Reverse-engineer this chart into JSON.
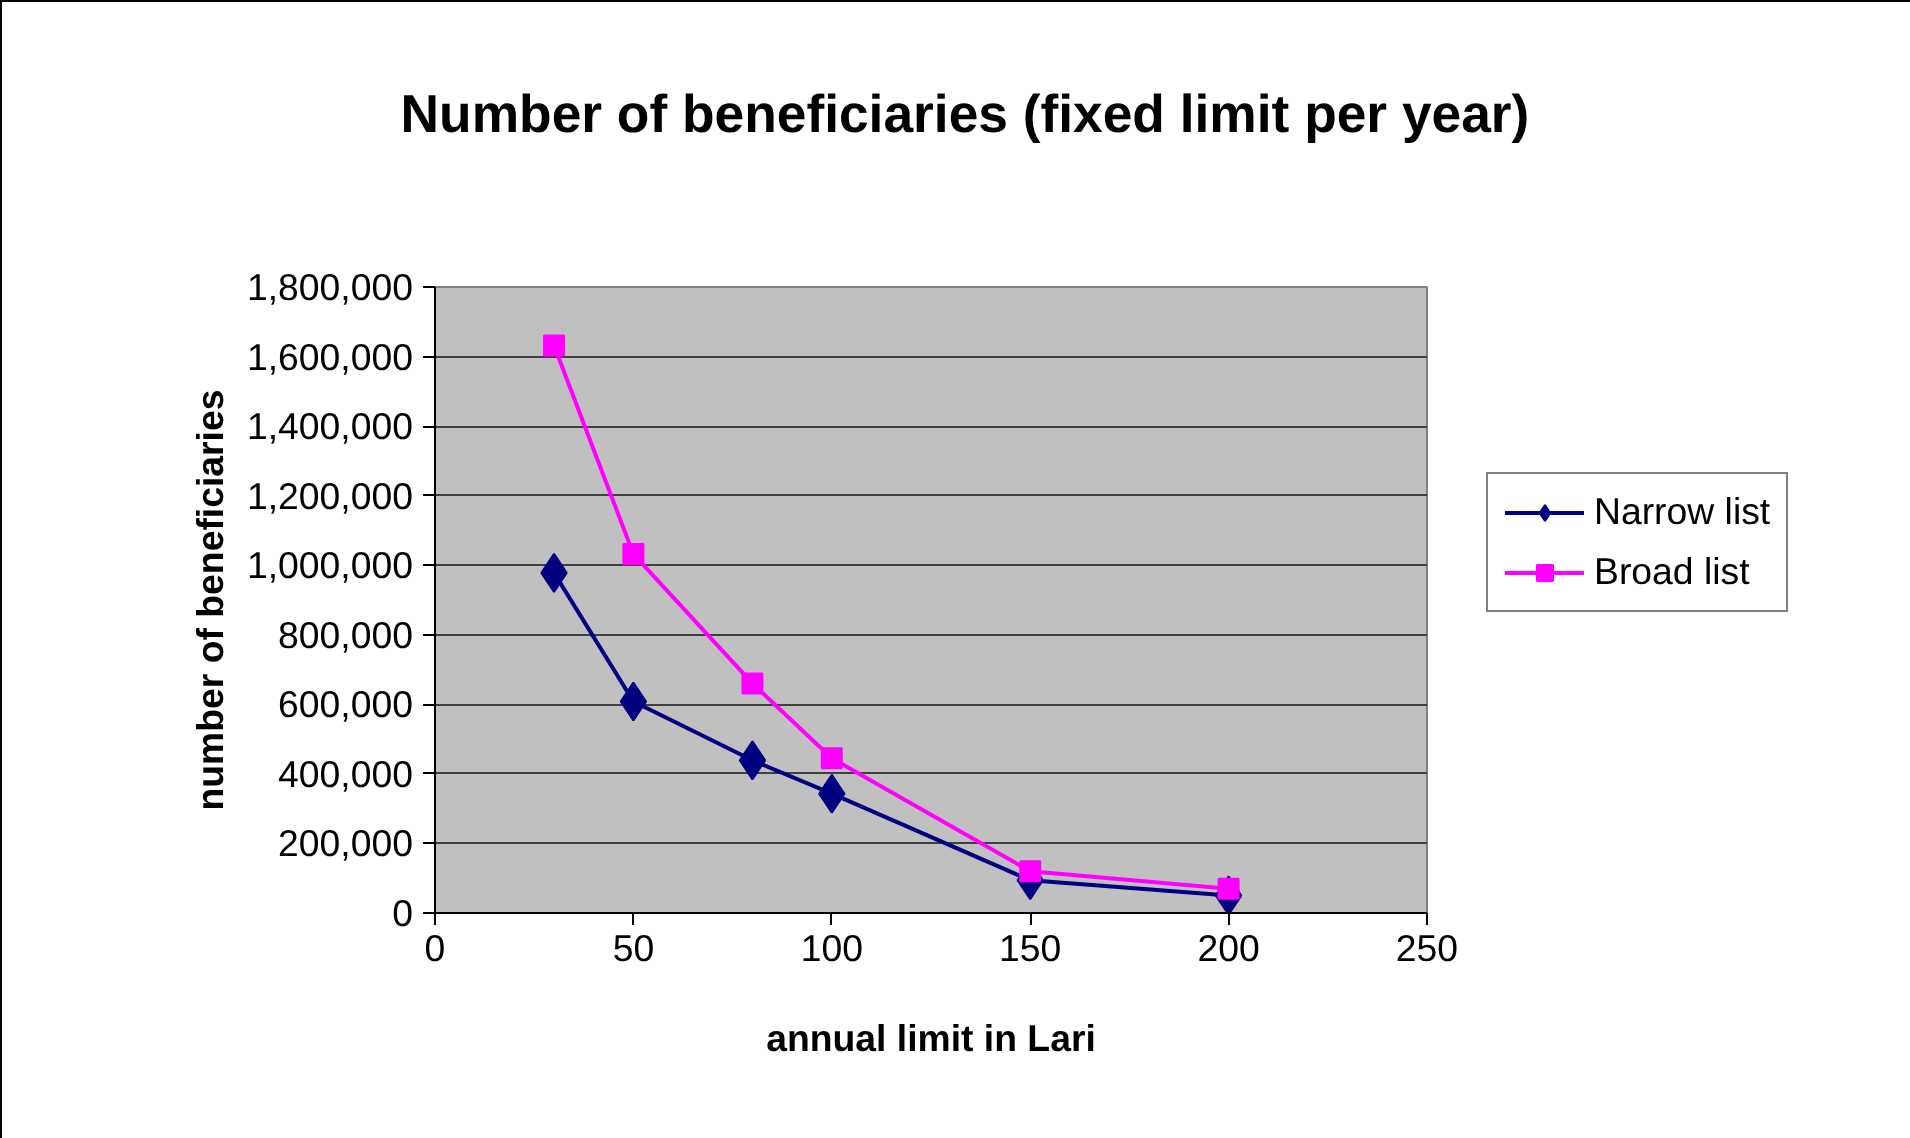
{
  "chart_data": {
    "type": "line",
    "title": "Number of beneficiaries (fixed limit per year)",
    "xlabel": "annual limit in Lari",
    "ylabel": "number of beneficiaries",
    "x": [
      30,
      50,
      80,
      100,
      150,
      200
    ],
    "series": [
      {
        "name": "Narrow list",
        "color": "#000080",
        "marker": "diamond",
        "values": [
          978000,
          608000,
          439000,
          343000,
          94000,
          50000
        ]
      },
      {
        "name": "Broad list",
        "color": "#ff00ff",
        "marker": "square",
        "values": [
          1632000,
          1032000,
          660000,
          445000,
          120000,
          70000
        ]
      }
    ],
    "xlim": [
      0,
      250
    ],
    "xticks": [
      0,
      50,
      100,
      150,
      200,
      250
    ],
    "ylim": [
      0,
      1800000
    ],
    "yticks": [
      0,
      {
        "value": 200000,
        "label": "200,000"
      },
      {
        "value": 400000,
        "label": "400,000"
      },
      {
        "value": 600000,
        "label": "600,000"
      },
      {
        "value": 800000,
        "label": "800,000"
      },
      {
        "value": 1000000,
        "label": "1,000,000"
      },
      {
        "value": 1200000,
        "label": "1,200,000"
      },
      {
        "value": 1400000,
        "label": "1,400,000"
      },
      {
        "value": 1600000,
        "label": "1,600,000"
      },
      {
        "value": 1800000,
        "label": "1,800,000"
      }
    ],
    "grid": "y",
    "legend": "right",
    "line_style": "solid"
  }
}
